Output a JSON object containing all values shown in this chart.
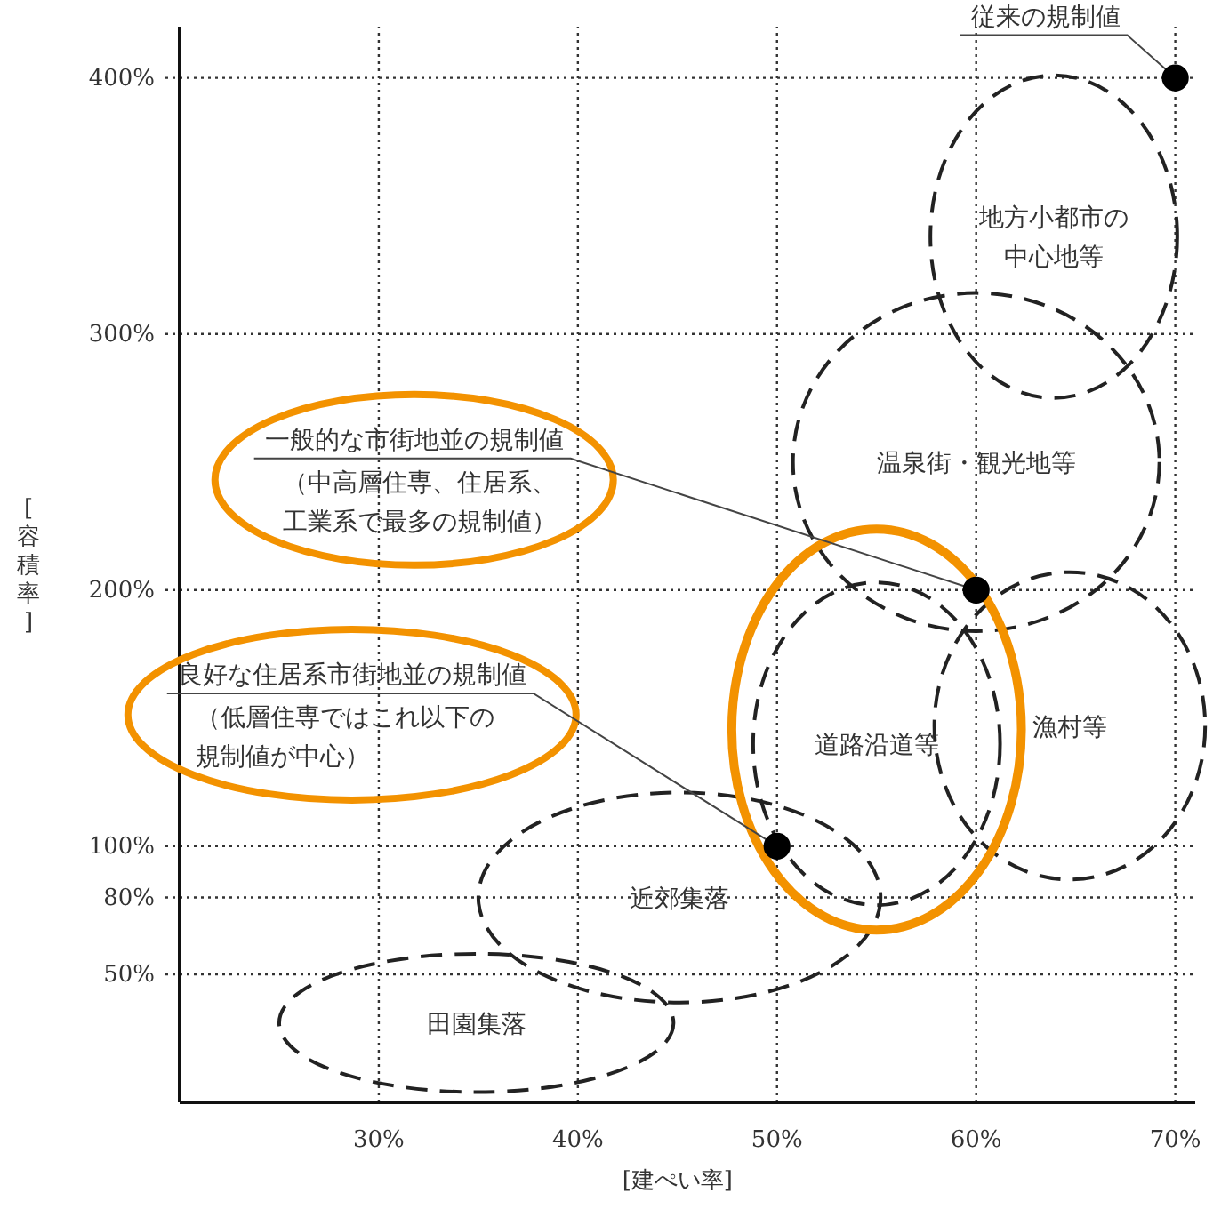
{
  "chart_data": {
    "type": "scatter",
    "xlabel": "[建ぺい率]",
    "ylabel": "[容積率]",
    "x": [
      50,
      60,
      70
    ],
    "series": [
      {
        "color": "#000000",
        "values": [
          100,
          200,
          400
        ]
      }
    ],
    "xlim": [
      20,
      71
    ],
    "ylim": [
      0,
      420
    ],
    "xticks": [
      {
        "value": 30,
        "label": "30%"
      },
      {
        "value": 40,
        "label": "40%"
      },
      {
        "value": 50,
        "label": "50%"
      },
      {
        "value": 60,
        "label": "60%"
      },
      {
        "value": 70,
        "label": "70%"
      }
    ],
    "yticks": [
      {
        "value": 50,
        "label": "50%"
      },
      {
        "value": 80,
        "label": "80%"
      },
      {
        "value": 100,
        "label": "100%"
      },
      {
        "value": 200,
        "label": "200%"
      },
      {
        "value": 300,
        "label": "300%"
      },
      {
        "value": 400,
        "label": "400%"
      }
    ],
    "grid": true,
    "marker": "circle",
    "annotations": [
      {
        "text": "従来の規制値",
        "x": 70,
        "y": 400
      },
      {
        "text": "一般的な市街地並の規制値",
        "x": 60,
        "y": 200
      },
      "（中高層住専、住居系、工業系で最多の規制値）",
      {
        "text": "良好な住居系市街地並の規制値",
        "x": 50,
        "y": 100
      },
      "（低層住専ではこれ以下の規制値が中心）",
      "地方小都市の中心地等",
      "温泉街・観光地等",
      "道路沿道等",
      "漁村等",
      "近郊集落",
      "田園集落"
    ]
  }
}
